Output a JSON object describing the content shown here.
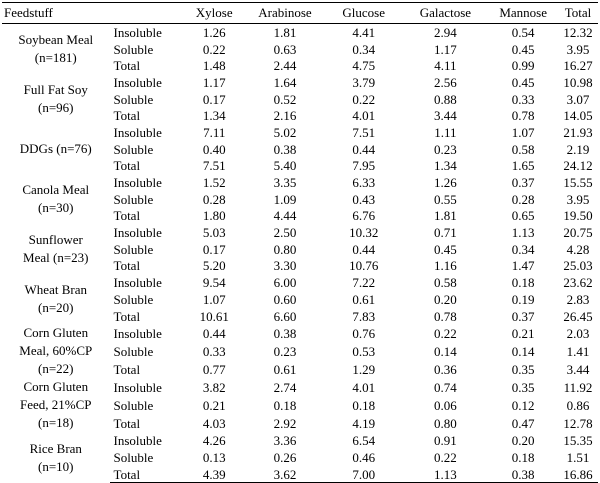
{
  "headers": [
    "Feedstuff",
    "",
    "Xylose",
    "Arabinose",
    "Glucose",
    "Galactose",
    "Mannose",
    "Total"
  ],
  "fractions": [
    "Insoluble",
    "Soluble",
    "Total"
  ],
  "groups": [
    {
      "name": "Soybean Meal",
      "n": "(n=181)",
      "rows": [
        [
          "1.26",
          "1.81",
          "4.41",
          "2.94",
          "0.54",
          "12.32"
        ],
        [
          "0.22",
          "0.63",
          "0.34",
          "1.17",
          "0.45",
          "3.95"
        ],
        [
          "1.48",
          "2.44",
          "4.75",
          "4.11",
          "0.99",
          "16.27"
        ]
      ]
    },
    {
      "name": "Full Fat Soy",
      "n": "(n=96)",
      "rows": [
        [
          "1.17",
          "1.64",
          "3.79",
          "2.56",
          "0.45",
          "10.98"
        ],
        [
          "0.17",
          "0.52",
          "0.22",
          "0.88",
          "0.33",
          "3.07"
        ],
        [
          "1.34",
          "2.16",
          "4.01",
          "3.44",
          "0.78",
          "14.05"
        ]
      ]
    },
    {
      "name": "DDGs (n=76)",
      "n": "",
      "rows": [
        [
          "7.11",
          "5.02",
          "7.51",
          "1.11",
          "1.07",
          "21.93"
        ],
        [
          "0.40",
          "0.38",
          "0.44",
          "0.23",
          "0.58",
          "2.19"
        ],
        [
          "7.51",
          "5.40",
          "7.95",
          "1.34",
          "1.65",
          "24.12"
        ]
      ]
    },
    {
      "name": "Canola Meal",
      "n": "(n=30)",
      "rows": [
        [
          "1.52",
          "3.35",
          "6.33",
          "1.26",
          "0.37",
          "15.55"
        ],
        [
          "0.28",
          "1.09",
          "0.43",
          "0.55",
          "0.28",
          "3.95"
        ],
        [
          "1.80",
          "4.44",
          "6.76",
          "1.81",
          "0.65",
          "19.50"
        ]
      ]
    },
    {
      "name": "Sunflower",
      "n": "Meal (n=23)",
      "rows": [
        [
          "5.03",
          "2.50",
          "10.32",
          "0.71",
          "1.13",
          "20.75"
        ],
        [
          "0.17",
          "0.80",
          "0.44",
          "0.45",
          "0.34",
          "4.28"
        ],
        [
          "5.20",
          "3.30",
          "10.76",
          "1.16",
          "1.47",
          "25.03"
        ]
      ]
    },
    {
      "name": "Wheat Bran",
      "n": "(n=20)",
      "rows": [
        [
          "9.54",
          "6.00",
          "7.22",
          "0.58",
          "0.18",
          "23.62"
        ],
        [
          "1.07",
          "0.60",
          "0.61",
          "0.20",
          "0.19",
          "2.83"
        ],
        [
          "10.61",
          "6.60",
          "7.83",
          "0.78",
          "0.37",
          "26.45"
        ]
      ]
    },
    {
      "name": "Corn Gluten",
      "n": "Meal, 60%CP",
      "n2": "(n=22)",
      "rows": [
        [
          "0.44",
          "0.38",
          "0.76",
          "0.22",
          "0.21",
          "2.03"
        ],
        [
          "0.33",
          "0.23",
          "0.53",
          "0.14",
          "0.14",
          "1.41"
        ],
        [
          "0.77",
          "0.61",
          "1.29",
          "0.36",
          "0.35",
          "3.44"
        ]
      ]
    },
    {
      "name": "Corn Gluten",
      "n": "Feed, 21%CP",
      "n2": "(n=18)",
      "rows": [
        [
          "3.82",
          "2.74",
          "4.01",
          "0.74",
          "0.35",
          "11.92"
        ],
        [
          "0.21",
          "0.18",
          "0.18",
          "0.06",
          "0.12",
          "0.86"
        ],
        [
          "4.03",
          "2.92",
          "4.19",
          "0.80",
          "0.47",
          "12.78"
        ]
      ]
    },
    {
      "name": "Rice Bran",
      "n": "(n=10)",
      "rows": [
        [
          "4.26",
          "3.36",
          "6.54",
          "0.91",
          "0.20",
          "15.35"
        ],
        [
          "0.13",
          "0.26",
          "0.46",
          "0.22",
          "0.18",
          "1.51"
        ],
        [
          "4.39",
          "3.62",
          "7.00",
          "1.13",
          "0.38",
          "16.86"
        ]
      ]
    }
  ]
}
